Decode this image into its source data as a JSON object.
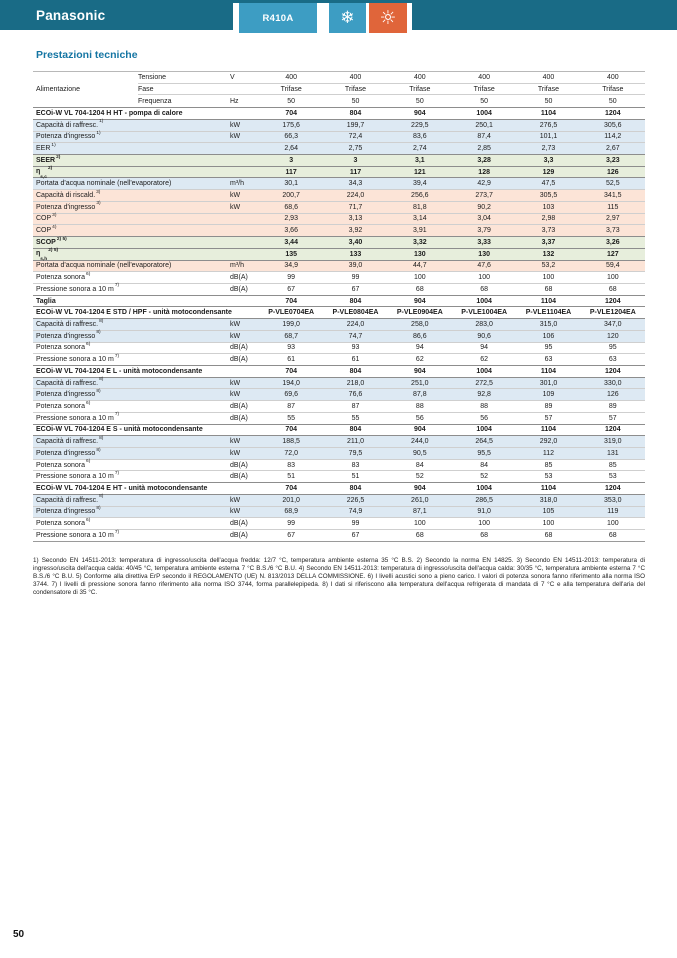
{
  "header_bar": {
    "brand": "Panasonic",
    "refrigerant_badge": "R410A",
    "icons": {
      "snowflake": "❄",
      "sun": "☼"
    },
    "colors": {
      "bar": "#196b86",
      "badge_blue": "#3d9dc3",
      "badge_orange": "#e0653a"
    }
  },
  "page": {
    "title": "Prestazioni tecniche",
    "number": "50"
  },
  "table": {
    "power_block": {
      "label": "Alimentazione",
      "rows": [
        {
          "label": "Tensione",
          "unit": "V",
          "values": [
            "400",
            "400",
            "400",
            "400",
            "400",
            "400"
          ]
        },
        {
          "label": "Fase",
          "unit": "",
          "values": [
            "Trifase",
            "Trifase",
            "Trifase",
            "Trifase",
            "Trifase",
            "Trifase"
          ]
        },
        {
          "label": "Frequenza",
          "unit": "Hz",
          "values": [
            "50",
            "50",
            "50",
            "50",
            "50",
            "50"
          ]
        }
      ]
    },
    "rows": [
      {
        "type": "section",
        "label": "ECOi-W VL 704-1204 H HT - pompa di calore",
        "values": [
          "704",
          "804",
          "904",
          "1004",
          "1104",
          "1204"
        ]
      },
      {
        "type": "data",
        "bg": "blue",
        "label": "Capacità di raffresc.",
        "sup": "1)",
        "unit": "kW",
        "values": [
          "175,6",
          "199,7",
          "229,5",
          "250,1",
          "276,5",
          "305,6"
        ]
      },
      {
        "type": "data",
        "bg": "blue",
        "label": "Potenza d'ingresso",
        "sup": "1)",
        "unit": "kW",
        "values": [
          "66,3",
          "72,4",
          "83,6",
          "87,4",
          "101,1",
          "114,2"
        ]
      },
      {
        "type": "data",
        "bg": "blue",
        "label": "EER",
        "sup": "1)",
        "unit": "",
        "values": [
          "2,64",
          "2,75",
          "2,74",
          "2,85",
          "2,73",
          "2,67"
        ]
      },
      {
        "type": "bold",
        "bg": "green",
        "label": "SEER",
        "sup": "2)",
        "unit": "",
        "values": [
          "3",
          "3",
          "3,1",
          "3,28",
          "3,3",
          "3,23"
        ]
      },
      {
        "type": "bold",
        "bg": "green",
        "label": "η",
        "sub": "s,c",
        "sup": "2)",
        "unit": "",
        "values": [
          "117",
          "117",
          "121",
          "128",
          "129",
          "126"
        ]
      },
      {
        "type": "data",
        "bg": "blue",
        "label": "Portata d'acqua nominale (nell'evaporatore)",
        "unit": "m³/h",
        "values": [
          "30,1",
          "34,3",
          "39,4",
          "42,9",
          "47,5",
          "52,5"
        ]
      },
      {
        "type": "data",
        "bg": "pink",
        "label": "Capacità di riscald.",
        "sup": "3)",
        "unit": "kW",
        "values": [
          "200,7",
          "224,0",
          "256,6",
          "273,7",
          "305,5",
          "341,5"
        ]
      },
      {
        "type": "data",
        "bg": "pink",
        "label": "Potenza d'ingresso",
        "sup": "3)",
        "unit": "kW",
        "values": [
          "68,6",
          "71,7",
          "81,8",
          "90,2",
          "103",
          "115"
        ]
      },
      {
        "type": "data",
        "bg": "pink",
        "label": "COP",
        "sup": "3)",
        "unit": "",
        "values": [
          "2,93",
          "3,13",
          "3,14",
          "3,04",
          "2,98",
          "2,97"
        ]
      },
      {
        "type": "data",
        "bg": "pink",
        "label": "COP",
        "sup": "4)",
        "unit": "",
        "values": [
          "3,66",
          "3,92",
          "3,91",
          "3,79",
          "3,73",
          "3,73"
        ]
      },
      {
        "type": "bold",
        "bg": "green",
        "label": "SCOP",
        "sup": "2) 5)",
        "unit": "",
        "values": [
          "3,44",
          "3,40",
          "3,32",
          "3,33",
          "3,37",
          "3,26"
        ]
      },
      {
        "type": "bold",
        "bg": "green",
        "label": "η",
        "sub": "s,h",
        "sup": "2) 5)",
        "unit": "",
        "values": [
          "135",
          "133",
          "130",
          "130",
          "132",
          "127"
        ]
      },
      {
        "type": "data",
        "bg": "pink",
        "label": "Portata d'acqua nominale (nell'evaporatore)",
        "unit": "m³/h",
        "values": [
          "34,9",
          "39,0",
          "44,7",
          "47,6",
          "53,2",
          "59,4"
        ]
      },
      {
        "type": "data",
        "bg": "white",
        "label": "Potenza sonora",
        "sup": "6)",
        "unit": "dB(A)",
        "values": [
          "99",
          "99",
          "100",
          "100",
          "100",
          "100"
        ]
      },
      {
        "type": "data",
        "bg": "white",
        "label": "Pressione sonora a 10 m",
        "sup": "7)",
        "unit": "dB(A)",
        "values": [
          "67",
          "67",
          "68",
          "68",
          "68",
          "68"
        ]
      },
      {
        "type": "bold",
        "bg": "white",
        "label": "Taglia",
        "unit": "",
        "values": [
          "704",
          "804",
          "904",
          "1004",
          "1104",
          "1204"
        ]
      },
      {
        "type": "section",
        "label": "ECOi-W VL 704-1204 E STD / HPF - unità motocondensante",
        "values": [
          "P-VLE0704EA",
          "P-VLE0804EA",
          "P-VLE0904EA",
          "P-VLE1004EA",
          "P-VLE1104EA",
          "P-VLE1204EA"
        ]
      },
      {
        "type": "data",
        "bg": "blue",
        "label": "Capacità di raffresc.",
        "sup": "8)",
        "unit": "kW",
        "values": [
          "199,0",
          "224,0",
          "258,0",
          "283,0",
          "315,0",
          "347,0"
        ]
      },
      {
        "type": "data",
        "bg": "blue",
        "label": "Potenza d'ingresso",
        "sup": "8)",
        "unit": "kW",
        "values": [
          "68,7",
          "74,7",
          "86,6",
          "90,6",
          "106",
          "120"
        ]
      },
      {
        "type": "data",
        "bg": "white",
        "label": "Potenza sonora",
        "sup": "6)",
        "unit": "dB(A)",
        "values": [
          "93",
          "93",
          "94",
          "94",
          "95",
          "95"
        ]
      },
      {
        "type": "data",
        "bg": "white",
        "label": "Pressione sonora a 10 m",
        "sup": "7)",
        "unit": "dB(A)",
        "values": [
          "61",
          "61",
          "62",
          "62",
          "63",
          "63"
        ]
      },
      {
        "type": "section",
        "label": "ECOi-W VL 704-1204 E L - unità motocondensante",
        "values": [
          "704",
          "804",
          "904",
          "1004",
          "1104",
          "1204"
        ]
      },
      {
        "type": "data",
        "bg": "blue",
        "label": "Capacità di raffresc.",
        "sup": "8)",
        "unit": "kW",
        "values": [
          "194,0",
          "218,0",
          "251,0",
          "272,5",
          "301,0",
          "330,0"
        ]
      },
      {
        "type": "data",
        "bg": "blue",
        "label": "Potenza d'ingresso",
        "sup": "8)",
        "unit": "kW",
        "values": [
          "69,6",
          "76,6",
          "87,8",
          "92,8",
          "109",
          "126"
        ]
      },
      {
        "type": "data",
        "bg": "white",
        "label": "Potenza sonora",
        "sup": "6)",
        "unit": "dB(A)",
        "values": [
          "87",
          "87",
          "88",
          "88",
          "89",
          "89"
        ]
      },
      {
        "type": "data",
        "bg": "white",
        "label": "Pressione sonora a 10 m",
        "sup": "7)",
        "unit": "dB(A)",
        "values": [
          "55",
          "55",
          "56",
          "56",
          "57",
          "57"
        ]
      },
      {
        "type": "section",
        "label": "ECOi-W VL 704-1204 E S - unità motocondensante",
        "values": [
          "704",
          "804",
          "904",
          "1004",
          "1104",
          "1204"
        ]
      },
      {
        "type": "data",
        "bg": "blue",
        "label": "Capacità di raffresc.",
        "sup": "8)",
        "unit": "kW",
        "values": [
          "188,5",
          "211,0",
          "244,0",
          "264,5",
          "292,0",
          "319,0"
        ]
      },
      {
        "type": "data",
        "bg": "blue",
        "label": "Potenza d'ingresso",
        "sup": "8)",
        "unit": "kW",
        "values": [
          "72,0",
          "79,5",
          "90,5",
          "95,5",
          "112",
          "131"
        ]
      },
      {
        "type": "data",
        "bg": "white",
        "label": "Potenza sonora",
        "sup": "6)",
        "unit": "dB(A)",
        "values": [
          "83",
          "83",
          "84",
          "84",
          "85",
          "85"
        ]
      },
      {
        "type": "data",
        "bg": "white",
        "label": "Pressione sonora a 10 m",
        "sup": "7)",
        "unit": "dB(A)",
        "values": [
          "51",
          "51",
          "52",
          "52",
          "53",
          "53"
        ]
      },
      {
        "type": "section",
        "label": "ECOi-W VL 704-1204 E HT - unità motocondensante",
        "values": [
          "704",
          "804",
          "904",
          "1004",
          "1104",
          "1204"
        ]
      },
      {
        "type": "data",
        "bg": "blue",
        "label": "Capacità di raffresc.",
        "sup": "8)",
        "unit": "kW",
        "values": [
          "201,0",
          "226,5",
          "261,0",
          "286,5",
          "318,0",
          "353,0"
        ]
      },
      {
        "type": "data",
        "bg": "blue",
        "label": "Potenza d'ingresso",
        "sup": "8)",
        "unit": "kW",
        "values": [
          "68,9",
          "74,9",
          "87,1",
          "91,0",
          "105",
          "119"
        ]
      },
      {
        "type": "data",
        "bg": "white",
        "label": "Potenza sonora",
        "sup": "6)",
        "unit": "dB(A)",
        "values": [
          "99",
          "99",
          "100",
          "100",
          "100",
          "100"
        ]
      },
      {
        "type": "data",
        "bg": "white",
        "label": "Pressione sonora a 10 m",
        "sup": "7)",
        "unit": "dB(A)",
        "values": [
          "67",
          "67",
          "68",
          "68",
          "68",
          "68"
        ]
      }
    ],
    "footnotes": "1) Secondo EN 14511-2013: temperatura di ingresso/uscita dell'acqua fredda: 12/7 °C, temperatura ambiente esterna 35 °C B.S. 2) Secondo la norma EN 14825. 3) Secondo EN 14511-2013: temperatura di ingresso/uscita dell'acqua calda: 40/45 °C, temperatura ambiente esterna 7 °C B.S./6 °C B.U. 4) Secondo EN 14511-2013: temperatura di ingresso/uscita dell'acqua calda: 30/35 °C, temperatura ambiente esterna 7 °C B.S./6 °C B.U. 5) Conforme alla direttiva ErP secondo il REGOLAMENTO (UE) N. 813/2013 DELLA COMMISSIONE. 6) I livelli acustici sono a pieno carico. I valori di potenza sonora fanno riferimento alla norma ISO 3744. 7) I livelli di pressione sonora fanno riferimento alla norma ISO 3744, forma parallelepipeda. 8) I dati si riferiscono alla temperatura dell'acqua refrigerata di mandata di 7 °C e alla temperatura dell'aria del condensatore di 35 °C."
  }
}
